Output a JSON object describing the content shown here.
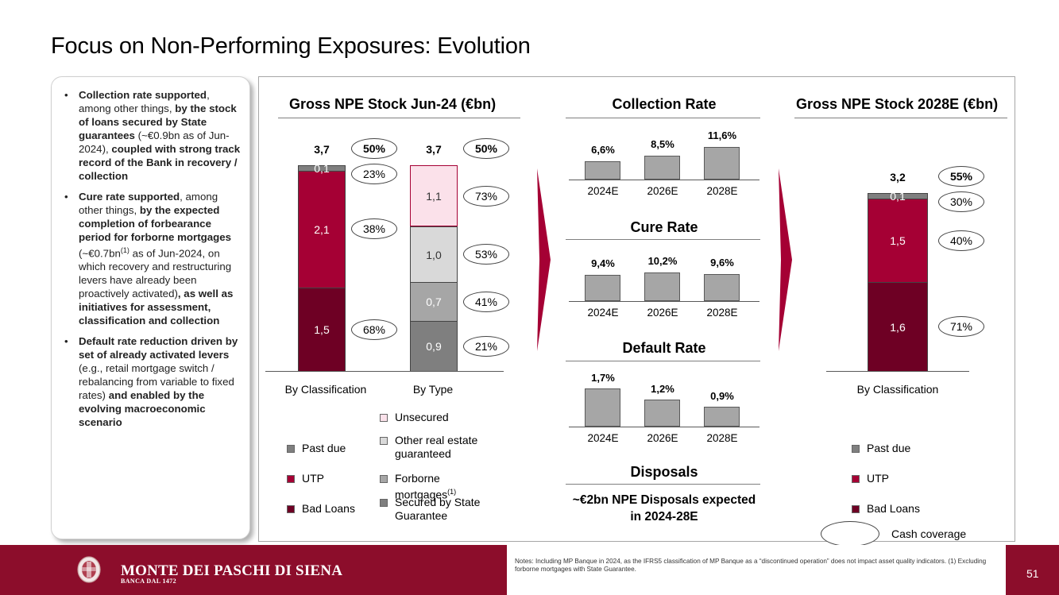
{
  "title": "Focus on Non-Performing Exposures: Evolution",
  "side_panel": {
    "bullets": [
      {
        "parts": [
          {
            "b": true,
            "t": "Collection rate supported"
          },
          {
            "b": false,
            "t": ", among other things, "
          },
          {
            "b": true,
            "t": "by the stock of loans secured by State guarantees"
          },
          {
            "b": false,
            "t": " (~€0.9bn as of Jun-2024), "
          },
          {
            "b": true,
            "t": "coupled with strong track record of the Bank in recovery / collection"
          }
        ]
      },
      {
        "parts": [
          {
            "b": true,
            "t": "Cure rate supported"
          },
          {
            "b": false,
            "t": ", among other things, "
          },
          {
            "b": true,
            "t": "by the expected completion of forbearance period for forborne mortgages"
          },
          {
            "b": false,
            "t": " (~€0.7bn"
          },
          {
            "sup": true,
            "t": "(1)"
          },
          {
            "b": false,
            "t": " as of Jun-2024, on which recovery and restructuring levers have already been proactively activated)"
          },
          {
            "b": true,
            "t": ", as well as initiatives for assessment, classification and collection"
          }
        ]
      },
      {
        "parts": [
          {
            "b": true,
            "t": "Default rate reduction driven by set of already activated levers"
          },
          {
            "b": false,
            "t": " (e.g., retail mortgage switch / rebalancing from variable to fixed rates) "
          },
          {
            "b": true,
            "t": "and enabled by the evolving macroeconomic scenario"
          }
        ]
      }
    ]
  },
  "stock_jun24": {
    "title": "Gross NPE Stock Jun-24 (€bn)",
    "by_classification": {
      "label": "By Classification",
      "total": "3,7",
      "total_coverage": "50%",
      "segments": [
        {
          "name": "Bad Loans",
          "value": 1.5,
          "label": "1,5",
          "coverage": "68%",
          "color": "#6e0024"
        },
        {
          "name": "UTP",
          "value": 2.1,
          "label": "2,1",
          "coverage": "38%",
          "color": "#a50034"
        },
        {
          "name": "Past due",
          "value": 0.1,
          "label": "0,1",
          "coverage": "23%",
          "color": "#7f7f7f"
        }
      ]
    },
    "by_type": {
      "label": "By Type",
      "total": "3,7",
      "total_coverage": "50%",
      "segments": [
        {
          "name": "Secured by State Guarantee",
          "value": 0.9,
          "label": "0,9",
          "coverage": "21%",
          "color": "#7f7f7f"
        },
        {
          "name": "Forborne mortgages",
          "value": 0.7,
          "label": "0,7",
          "coverage": "41%",
          "color": "#a6a6a6"
        },
        {
          "name": "Other real estate guaranteed",
          "value": 1.0,
          "label": "1,0",
          "coverage": "53%",
          "color": "#d9d9d9"
        },
        {
          "name": "Unsecured",
          "value": 1.1,
          "label": "1,1",
          "coverage": "73%",
          "color": "#fbe1ea"
        }
      ]
    },
    "legend_classification": [
      {
        "label": "Past due",
        "color": "#7f7f7f"
      },
      {
        "label": "UTP",
        "color": "#a50034"
      },
      {
        "label": "Bad Loans",
        "color": "#6e0024"
      }
    ],
    "legend_type": [
      {
        "label": "Unsecured",
        "color": "#fbe1ea",
        "sup": ""
      },
      {
        "label": "Other real estate guaranteed",
        "color": "#d9d9d9",
        "sup": ""
      },
      {
        "label": "Forborne mortgages",
        "color": "#a6a6a6",
        "sup": "(1)"
      },
      {
        "label": "Secured by State Guarantee",
        "color": "#7f7f7f",
        "sup": ""
      }
    ]
  },
  "rates": {
    "collection": {
      "title": "Collection Rate",
      "categories": [
        "2024E",
        "2026E",
        "2028E"
      ],
      "values": [
        6.6,
        8.5,
        11.6
      ],
      "labels": [
        "6,6%",
        "8,5%",
        "11,6%"
      ]
    },
    "cure": {
      "title": "Cure Rate",
      "categories": [
        "2024E",
        "2026E",
        "2028E"
      ],
      "values": [
        9.4,
        10.2,
        9.6
      ],
      "labels": [
        "9,4%",
        "10,2%",
        "9,6%"
      ]
    },
    "default": {
      "title": "Default Rate",
      "categories": [
        "2024E",
        "2026E",
        "2028E"
      ],
      "values": [
        1.7,
        1.2,
        0.9
      ],
      "labels": [
        "1,7%",
        "1,2%",
        "0,9%"
      ]
    },
    "disposals": {
      "title": "Disposals",
      "text": "~€2bn NPE Disposals expected in 2024-28E"
    }
  },
  "stock_2028": {
    "title": "Gross NPE Stock 2028E (€bn)",
    "label": "By Classification",
    "total": "3,2",
    "total_coverage": "55%",
    "segments": [
      {
        "name": "Bad Loans",
        "value": 1.6,
        "label": "1,6",
        "coverage": "71%",
        "color": "#6e0024"
      },
      {
        "name": "UTP",
        "value": 1.5,
        "label": "1,5",
        "coverage": "40%",
        "color": "#a50034"
      },
      {
        "name": "Past due",
        "value": 0.1,
        "label": "0,1",
        "coverage": "30%",
        "color": "#7f7f7f"
      }
    ],
    "legend": [
      {
        "label": "Past due",
        "color": "#7f7f7f"
      },
      {
        "label": "UTP",
        "color": "#a50034"
      },
      {
        "label": "Bad Loans",
        "color": "#6e0024"
      }
    ],
    "cash_coverage_label": "Cash coverage"
  },
  "chart_data": [
    {
      "type": "bar",
      "title": "Gross NPE Stock Jun-24 (€bn)",
      "categories": [
        "By Classification",
        "By Type"
      ],
      "stacked": true,
      "series": [
        {
          "name": "Bad Loans",
          "values": [
            1.5,
            null
          ]
        },
        {
          "name": "UTP",
          "values": [
            2.1,
            null
          ]
        },
        {
          "name": "Past due",
          "values": [
            0.1,
            null
          ]
        },
        {
          "name": "Secured by State Guarantee",
          "values": [
            null,
            0.9
          ]
        },
        {
          "name": "Forborne mortgages",
          "values": [
            null,
            0.7
          ]
        },
        {
          "name": "Other real estate guaranteed",
          "values": [
            null,
            1.0
          ]
        },
        {
          "name": "Unsecured",
          "values": [
            null,
            1.1
          ]
        }
      ],
      "totals": [
        3.7,
        3.7
      ]
    },
    {
      "type": "bar",
      "title": "Collection Rate",
      "categories": [
        "2024E",
        "2026E",
        "2028E"
      ],
      "values": [
        6.6,
        8.5,
        11.6
      ]
    },
    {
      "type": "bar",
      "title": "Cure Rate",
      "categories": [
        "2024E",
        "2026E",
        "2028E"
      ],
      "values": [
        9.4,
        10.2,
        9.6
      ]
    },
    {
      "type": "bar",
      "title": "Default Rate",
      "categories": [
        "2024E",
        "2026E",
        "2028E"
      ],
      "values": [
        1.7,
        1.2,
        0.9
      ]
    },
    {
      "type": "bar",
      "title": "Gross NPE Stock 2028E (€bn)",
      "categories": [
        "By Classification"
      ],
      "stacked": true,
      "series": [
        {
          "name": "Bad Loans",
          "values": [
            1.6
          ]
        },
        {
          "name": "UTP",
          "values": [
            1.5
          ]
        },
        {
          "name": "Past due",
          "values": [
            0.1
          ]
        }
      ],
      "totals": [
        3.2
      ]
    }
  ],
  "footer": {
    "brand": "MONTE DEI PASCHI DI SIENA",
    "brand_sub": "BANCA DAL 1472",
    "notes": "Notes: Including MP Banque in 2024, as the IFRS5 classification of MP Banque as a “discontinued operation” does not impact asset quality indicators. (1) Excluding forborne mortgages with State Guarantee.",
    "page_number": "51"
  },
  "colors": {
    "brand": "#8c0d2b",
    "bad_loans": "#6e0024",
    "utp": "#a50034",
    "past_due": "#7f7f7f"
  }
}
